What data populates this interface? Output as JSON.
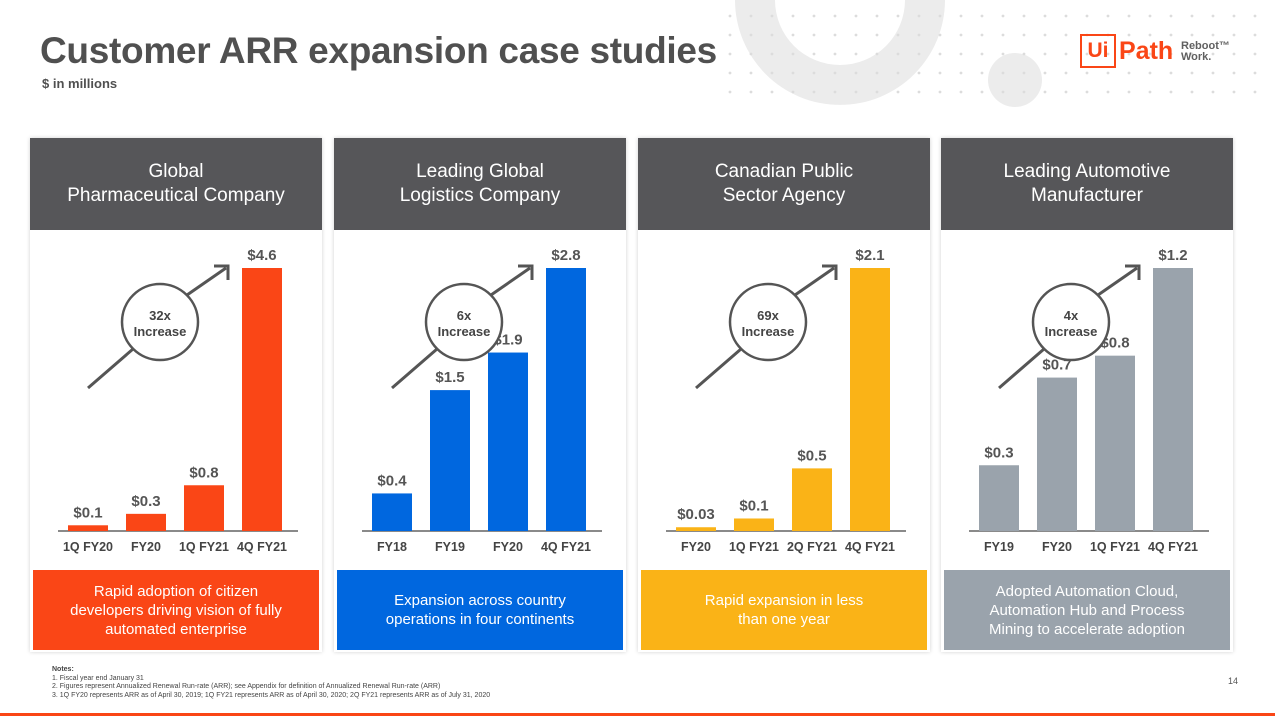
{
  "title": "Customer ARR expansion case studies",
  "subtitle": "$ in millions",
  "logo": {
    "brand_ui": "Ui",
    "brand_path": "Path",
    "tagline_1": "Reboot™",
    "tagline_2": "Work."
  },
  "accent": "#fa4616",
  "chart_data": [
    {
      "type": "bar",
      "title": "Global\nPharmaceutical Company",
      "color": "#fa4616",
      "categories": [
        "1Q FY20",
        "FY20",
        "1Q FY21",
        "4Q FY21"
      ],
      "values": [
        0.1,
        0.3,
        0.8,
        4.6
      ],
      "value_labels": [
        "$0.1",
        "$0.3",
        "$0.8",
        "$4.6"
      ],
      "increase_multiple": "32x",
      "increase_word": "Increase",
      "caption": "Rapid adoption of citizen\ndevelopers driving vision of fully\nautomated enterprise"
    },
    {
      "type": "bar",
      "title": "Leading Global\nLogistics Company",
      "color": "#0067df",
      "categories": [
        "FY18",
        "FY19",
        "FY20",
        "4Q FY21"
      ],
      "values": [
        0.4,
        1.5,
        1.9,
        2.8
      ],
      "value_labels": [
        "$0.4",
        "$1.5",
        "$1.9",
        "$2.8"
      ],
      "increase_multiple": "6x",
      "increase_word": "Increase",
      "caption": "Expansion across country\noperations in four continents"
    },
    {
      "type": "bar",
      "title": "Canadian Public\nSector Agency",
      "color": "#fab317",
      "categories": [
        "FY20",
        "1Q FY21",
        "2Q FY21",
        "4Q FY21"
      ],
      "values": [
        0.03,
        0.1,
        0.5,
        2.1
      ],
      "value_labels": [
        "$0.03",
        "$0.1",
        "$0.5",
        "$2.1"
      ],
      "increase_multiple": "69x",
      "increase_word": "Increase",
      "caption": "Rapid expansion in less\nthan one year"
    },
    {
      "type": "bar",
      "title": "Leading Automotive\nManufacturer",
      "color": "#9aa3ac",
      "categories": [
        "FY19",
        "FY20",
        "1Q FY21",
        "4Q FY21"
      ],
      "values": [
        0.3,
        0.7,
        0.8,
        1.2
      ],
      "value_labels": [
        "$0.3",
        "$0.7",
        "$0.8",
        "$1.2"
      ],
      "increase_multiple": "4x",
      "increase_word": "Increase",
      "caption": "Adopted Automation Cloud,\nAutomation Hub and Process\nMining to accelerate adoption"
    }
  ],
  "notes": {
    "heading": "Notes:",
    "items": [
      "1.   Fiscal year end January 31",
      "2.   Figures represent Annualized Renewal Run-rate (ARR); see Appendix for definition of Annualized Renewal Run-rate (ARR)",
      "3.   1Q FY20 represents ARR as of April 30, 2019; 1Q FY21 represents ARR as of April 30, 2020; 2Q FY21 represents ARR as of July 31, 2020"
    ]
  },
  "page_number": "14"
}
